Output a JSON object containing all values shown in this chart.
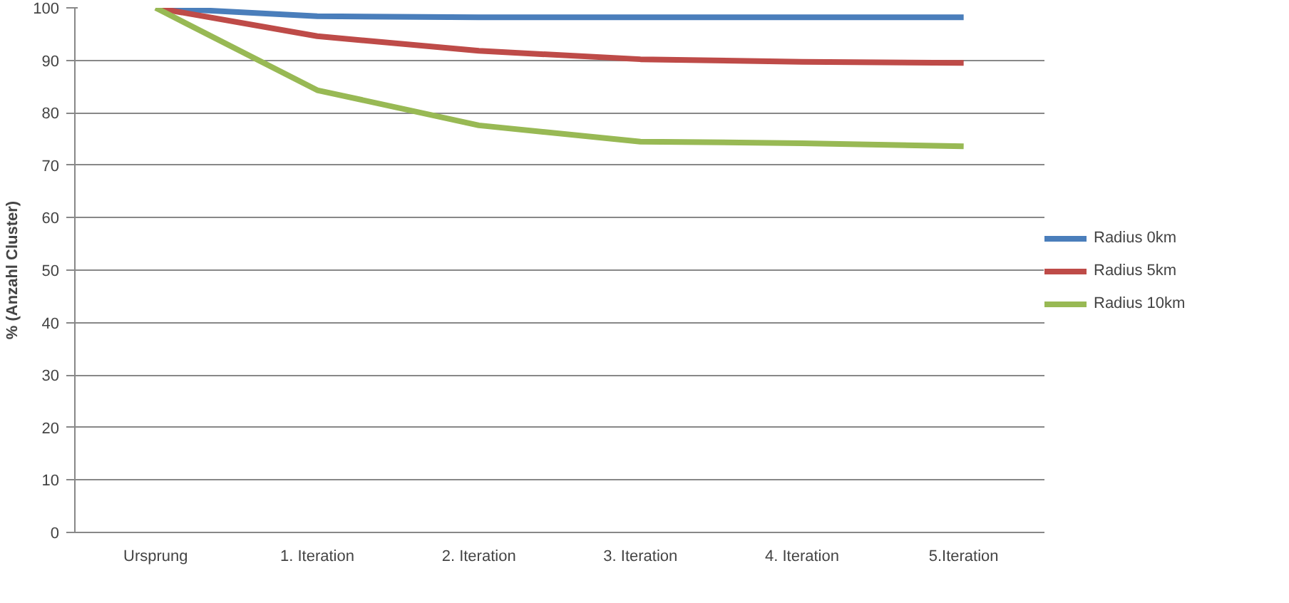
{
  "chart_data": {
    "type": "line",
    "ylabel": "% (Anzahl Cluster)",
    "categories": [
      "Ursprung",
      "1. Iteration",
      "2. Iteration",
      "3. Iteration",
      "4. Iteration",
      "5.Iteration"
    ],
    "series": [
      {
        "name": "Radius 0km",
        "color": "#4a7ebb",
        "values": [
          100,
          98.4,
          98.2,
          98.2,
          98.2,
          98.2
        ]
      },
      {
        "name": "Radius 5km",
        "color": "#be4b48",
        "values": [
          100,
          94.6,
          91.8,
          90.2,
          89.7,
          89.5
        ]
      },
      {
        "name": "Radius 10km",
        "color": "#98b954",
        "values": [
          100,
          84.3,
          77.6,
          74.5,
          74.2,
          73.6
        ]
      }
    ],
    "ylim": [
      0,
      100
    ],
    "yticks": [
      0,
      10,
      20,
      30,
      40,
      50,
      60,
      70,
      80,
      90,
      100
    ],
    "grid": "y",
    "legend": "right",
    "marker": "none",
    "line_style": "solid"
  }
}
